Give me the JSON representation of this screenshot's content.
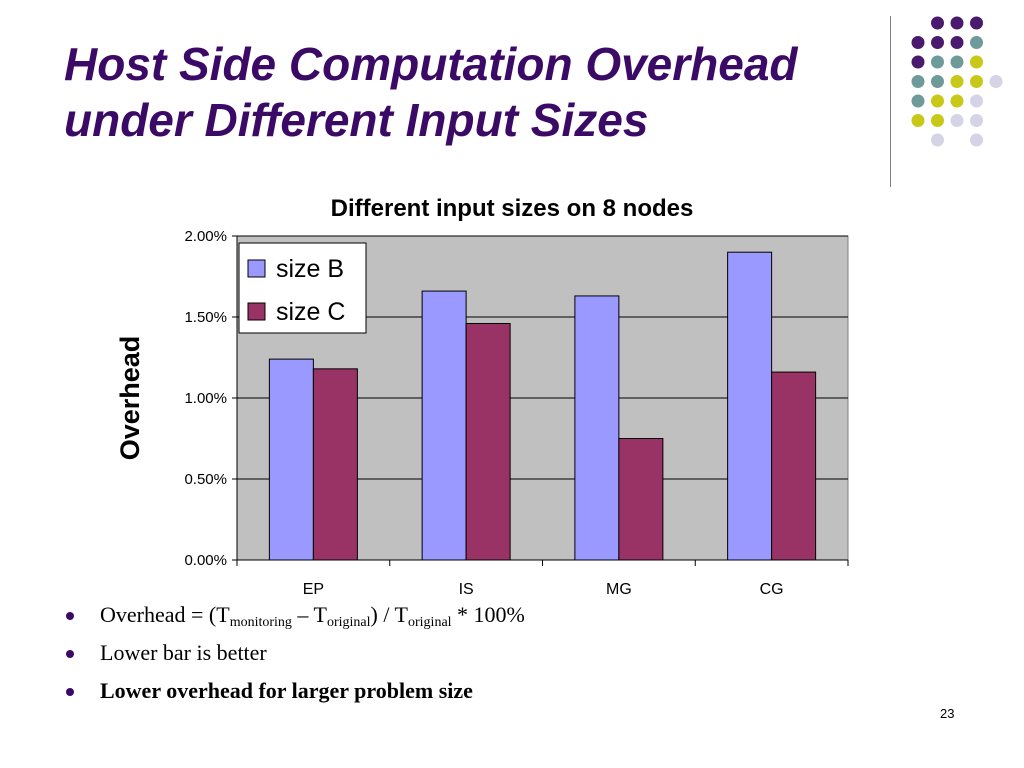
{
  "slide": {
    "title_line1": "Host Side Computation Overhead",
    "title_line2": "under Different Input Sizes",
    "page_number": "23"
  },
  "decoration": {
    "dot_colors": {
      "purple": "#4a1a6e",
      "teal": "#6f9a9a",
      "yellow": "#c8c818",
      "lavender": "#d4d4e6"
    }
  },
  "bullets": {
    "b1": {
      "prefix": "Overhead = (T",
      "sub1": "monitoring",
      "mid": " – T",
      "sub2": "original",
      "mid2": ") / T",
      "sub3": "original",
      "suffix": " * 100%"
    },
    "b2": "Lower bar is better",
    "b3": "Lower overhead for larger problem size"
  },
  "chart_data": {
    "type": "bar",
    "title": "Different input sizes on 8 nodes",
    "xlabel": "",
    "ylabel": "Overhead",
    "categories": [
      "EP",
      "IS",
      "MG",
      "CG"
    ],
    "series": [
      {
        "name": "size B",
        "color": "#9999ff",
        "values": [
          1.24,
          1.66,
          1.63,
          1.9
        ]
      },
      {
        "name": "size C",
        "color": "#993366",
        "values": [
          1.18,
          1.46,
          0.75,
          1.16
        ]
      }
    ],
    "ylim": [
      0,
      2.0
    ],
    "yticks": [
      0,
      0.5,
      1.0,
      1.5,
      2.0
    ],
    "ytick_labels": [
      "0.00%",
      "0.50%",
      "1.00%",
      "1.50%",
      "2.00%"
    ],
    "grid": true,
    "plot_background": "#c0c0c0",
    "legend_position": "top-left"
  }
}
